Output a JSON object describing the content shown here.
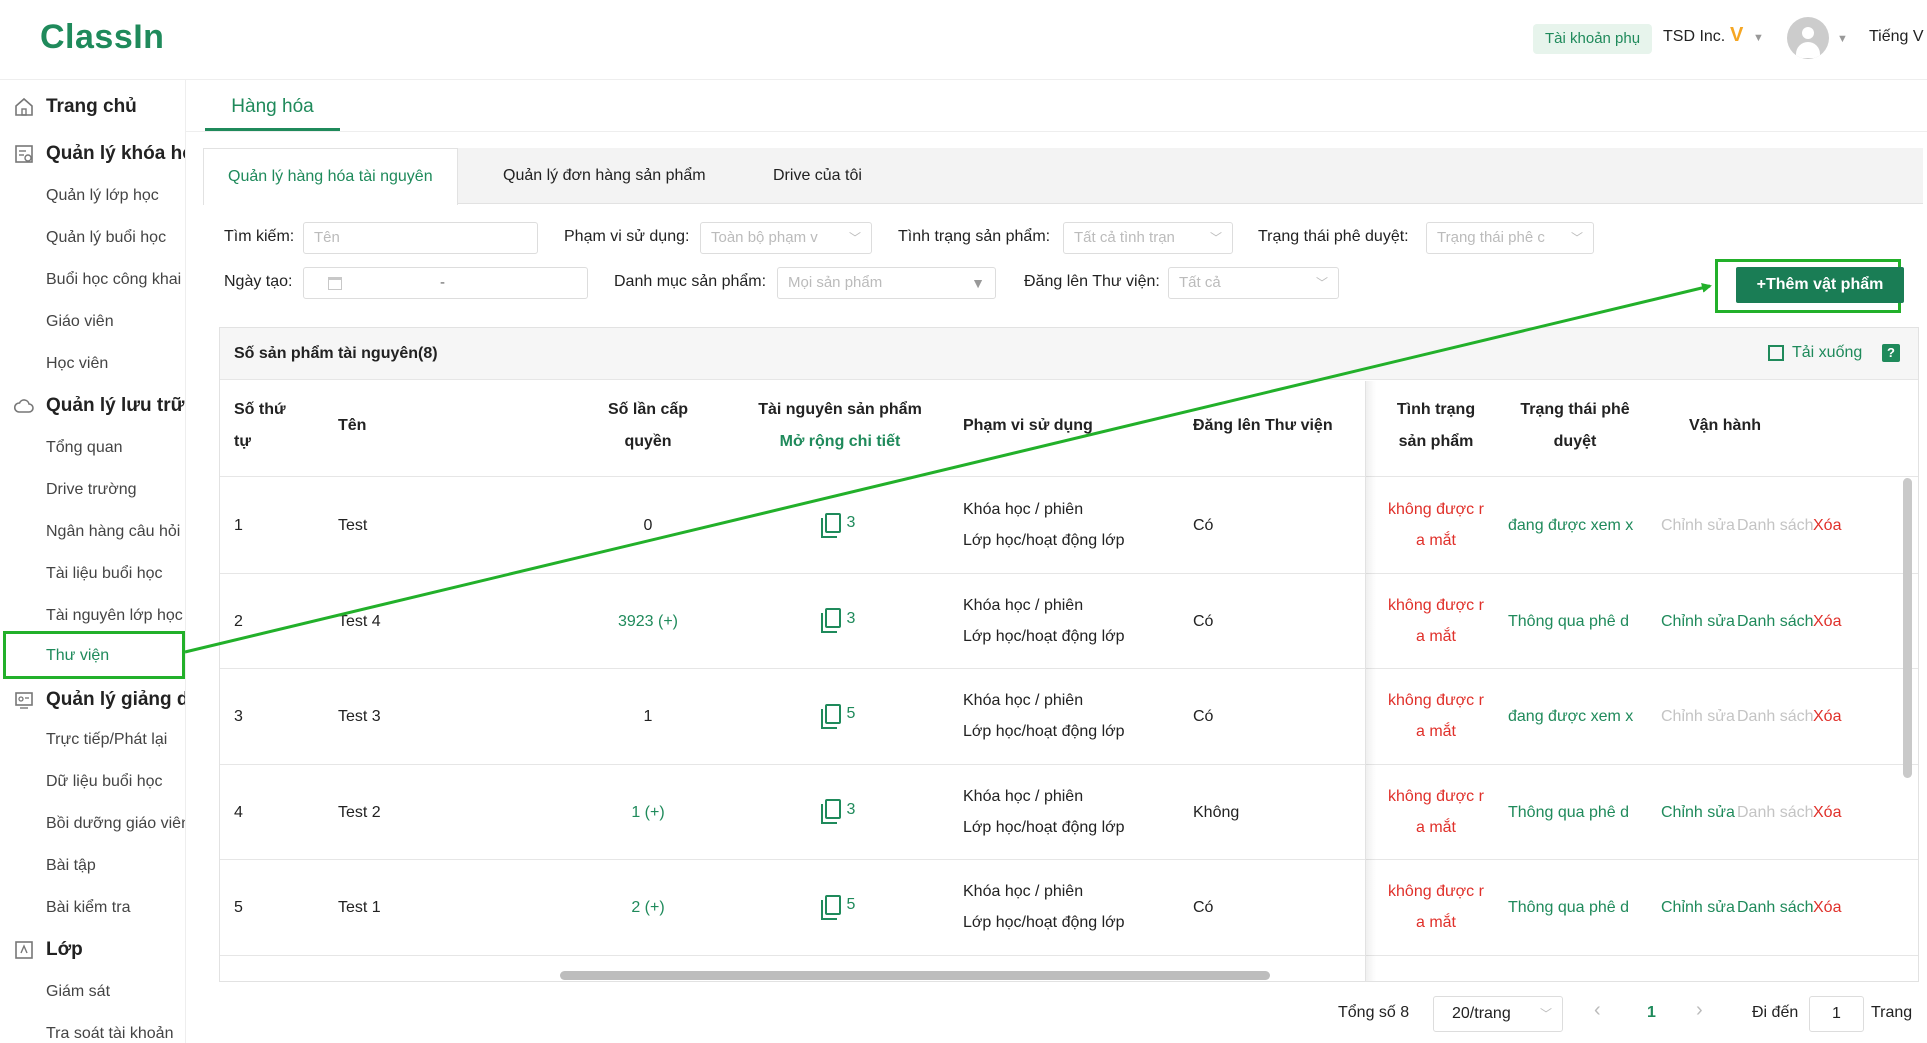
{
  "header": {
    "logo": "ClassIn",
    "sub_account": "Tài khoản phụ",
    "company": "TSD Inc.",
    "vip": "V",
    "language": "Tiếng V"
  },
  "sidebar": {
    "sections": [
      {
        "label": "Trang chủ",
        "icon": "home-icon",
        "items": []
      },
      {
        "label": "Quản lý khóa họ",
        "icon": "course-icon",
        "items": [
          "Quản lý lớp học",
          "Quản lý buổi học",
          "Buổi học công khai",
          "Giáo viên",
          "Học viên"
        ]
      },
      {
        "label": "Quản lý lưu trữ",
        "icon": "cloud-icon",
        "items": [
          "Tổng quan",
          "Drive trường",
          "Ngân hàng câu hỏi",
          "Tài liệu buổi học",
          "Tài nguyên lớp học",
          "Thư viện"
        ]
      },
      {
        "label": "Quản lý giảng dạ",
        "icon": "teaching-icon",
        "items": [
          "Trực tiếp/Phát lại",
          "Dữ liệu buổi học",
          "Bồi dưỡng giáo viên",
          "Bài tập",
          "Bài kiểm tra"
        ]
      },
      {
        "label": "Lớp",
        "icon": "class-icon",
        "items": [
          "Giám sát",
          "Tra soát tài khoản"
        ]
      }
    ],
    "active_item": "Thư viện"
  },
  "page_tab": "Hàng hóa",
  "tabs": [
    "Quản lý hàng hóa tài nguyên",
    "Quản lý đơn hàng sản phẩm",
    "Drive của tôi"
  ],
  "filters": {
    "search_label": "Tìm kiếm:",
    "search_placeholder": "Tên",
    "scope_label": "Phạm vi sử dụng:",
    "scope_value": "Toàn bộ phạm v",
    "status_label": "Tình trạng sản phẩm:",
    "status_value": "Tất cả tình trạn",
    "approval_label": "Trạng thái phê duyệt:",
    "approval_value": "Trạng thái phê c",
    "date_label": "Ngày tạo:",
    "date_sep": "-",
    "category_label": "Danh mục sản phẩm:",
    "category_value": "Mọi sản phẩm",
    "library_label": "Đăng lên Thư viện:",
    "library_value": "Tất cả"
  },
  "add_button": "+Thêm vật phẩm",
  "table": {
    "title": "Số sản phẩm tài nguyên(8)",
    "download": "Tải xuống",
    "help": "?",
    "columns": {
      "no_1": "Số thứ",
      "no_2": "tự",
      "name": "Tên",
      "grants_1": "Số lần cấp",
      "grants_2": "quyền",
      "res_1": "Tài nguyên sản phẩm",
      "res_2": "Mở rộng chi tiết",
      "scope": "Phạm vi sử dụng",
      "library": "Đăng lên Thư viện",
      "status_1": "Tình trạng",
      "status_2": "sản phẩm",
      "approval_1": "Trạng thái phê",
      "approval_2": "duyệt",
      "ops": "Vận hành"
    },
    "rows": [
      {
        "no": "1",
        "name": "Test",
        "grants": "0",
        "resources": "3",
        "scope_1": "Khóa học / phiên",
        "scope_2": "Lớp học/hoạt động lớp",
        "library": "Có",
        "status_1": "không được r",
        "status_2": "a mắt",
        "approval": "đang được xem x",
        "edit": "Chỉnh sửa",
        "list": "Danh sách",
        "delete": "Xóa"
      },
      {
        "no": "2",
        "name": "Test 4",
        "grants": "3923 (+)",
        "resources": "3",
        "scope_1": "Khóa học / phiên",
        "scope_2": "Lớp học/hoạt động lớp",
        "library": "Có",
        "status_1": "không được r",
        "status_2": "a mắt",
        "approval": "Thông qua phê d",
        "edit": "Chỉnh sửa",
        "list": "Danh sách",
        "delete": "Xóa"
      },
      {
        "no": "3",
        "name": "Test 3",
        "grants": "1",
        "resources": "5",
        "scope_1": "Khóa học / phiên",
        "scope_2": "Lớp học/hoạt động lớp",
        "library": "Có",
        "status_1": "không được r",
        "status_2": "a mắt",
        "approval": "đang được xem x",
        "edit": "Chỉnh sửa",
        "list": "Danh sách",
        "delete": "Xóa"
      },
      {
        "no": "4",
        "name": "Test 2",
        "grants": "1 (+)",
        "resources": "3",
        "scope_1": "Khóa học / phiên",
        "scope_2": "Lớp học/hoạt động lớp",
        "library": "Không",
        "status_1": "không được r",
        "status_2": "a mắt",
        "approval": "Thông qua phê d",
        "edit": "Chỉnh sửa",
        "list": "Danh sách",
        "delete": "Xóa"
      },
      {
        "no": "5",
        "name": "Test 1",
        "grants": "2 (+)",
        "resources": "5",
        "scope_1": "Khóa học / phiên",
        "scope_2": "Lớp học/hoạt động lớp",
        "library": "Có",
        "status_1": "không được r",
        "status_2": "a mắt",
        "approval": "Thông qua phê d",
        "edit": "Chỉnh sửa",
        "list": "Danh sách",
        "delete": "Xóa"
      }
    ]
  },
  "pagination": {
    "total": "Tổng số 8",
    "per_page": "20/trang",
    "prev": "‹",
    "current": "1",
    "next": "›",
    "goto": "Đi đến",
    "goto_value": "1",
    "page_word": "Trang"
  },
  "colors": {
    "brand": "#1f8a5b",
    "danger": "#e0302a",
    "annotation": "#22b02a"
  }
}
